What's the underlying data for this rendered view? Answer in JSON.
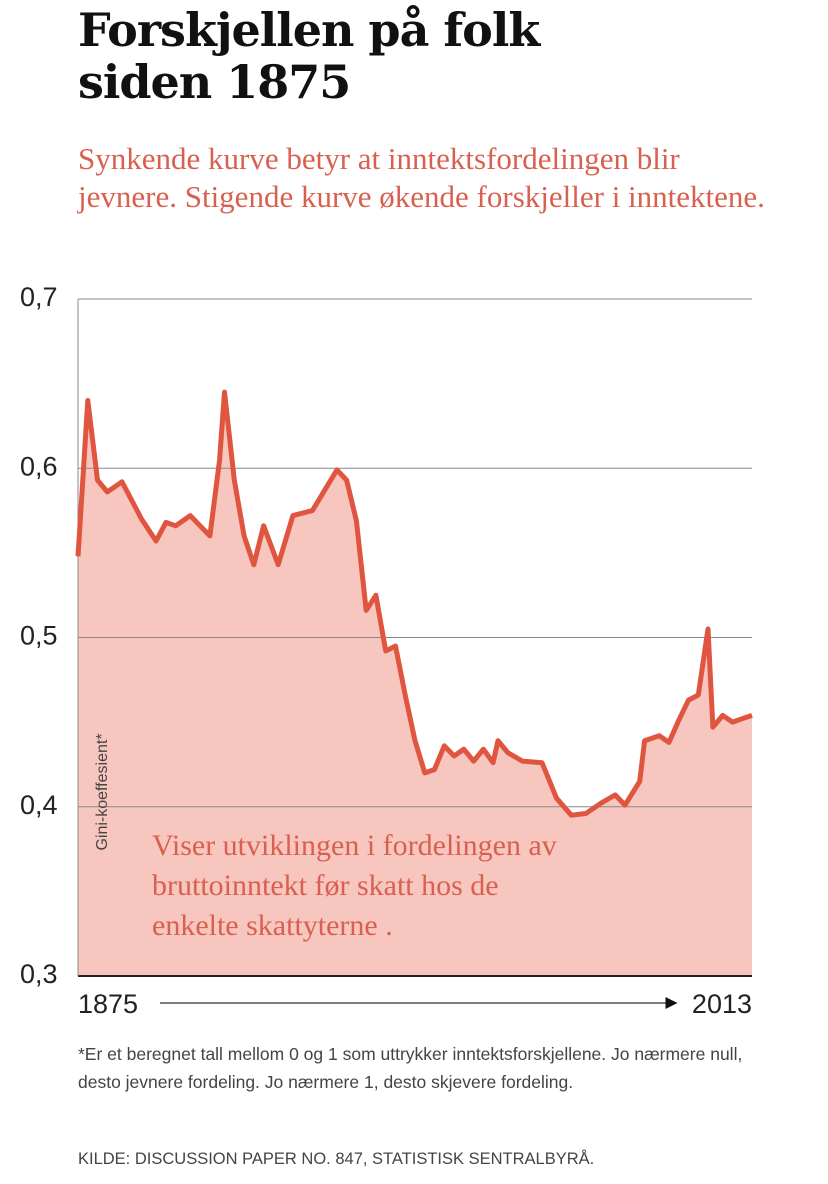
{
  "chart_data": {
    "type": "line",
    "title": "Forskjellen på folk siden 1875",
    "subtitle": "Synkende kurve betyr at inntektsfordelingen blir jevnere. Stigende kurve økende forskjeller i inntektene.",
    "y_label": "Gini-koeffesient*",
    "annotation": "Viser utviklingen i fordelingen av bruttoinntekt før skatt hos de enkelte skattyterne .",
    "footnote": "*Er et beregnet tall mellom 0 og 1 som uttrykker inntektsforskjellene. Jo nærmere null, desto jevnere fordeling. Jo nærmere 1, desto skjevere fordeling.",
    "source": "KILDE: DISCUSSION PAPER NO. 847, STATISTISK SENTRALBYRÅ.",
    "color": "#e0553f",
    "fill": "#f6c6bf",
    "grid": true,
    "xlim": [
      1875,
      2013
    ],
    "xticks": [
      1875,
      2013
    ],
    "ylim": [
      0.3,
      0.7
    ],
    "yticks": [
      {
        "value": 0.3,
        "label": "0,3"
      },
      {
        "value": 0.4,
        "label": "0,4"
      },
      {
        "value": 0.5,
        "label": "0,5"
      },
      {
        "value": 0.6,
        "label": "0,6"
      },
      {
        "value": 0.7,
        "label": "0,7"
      }
    ],
    "x": [
      1875,
      1877,
      1879,
      1881,
      1884,
      1888,
      1891,
      1893,
      1895,
      1898,
      1900,
      1902,
      1904,
      1905,
      1907,
      1909,
      1911,
      1913,
      1916,
      1919,
      1923,
      1928,
      1930,
      1932,
      1934,
      1936,
      1938,
      1940,
      1942,
      1944,
      1946,
      1948,
      1950,
      1952,
      1954,
      1956,
      1958,
      1960,
      1961,
      1963,
      1966,
      1970,
      1973,
      1976,
      1979,
      1982,
      1985,
      1987,
      1990,
      1991,
      1994,
      1996,
      1998,
      2000,
      2002,
      2004,
      2005,
      2007,
      2009,
      2011,
      2013
    ],
    "values": [
      0.548,
      0.64,
      0.593,
      0.586,
      0.592,
      0.57,
      0.557,
      0.568,
      0.566,
      0.572,
      0.566,
      0.56,
      0.605,
      0.645,
      0.593,
      0.56,
      0.543,
      0.566,
      0.543,
      0.572,
      0.575,
      0.599,
      0.593,
      0.569,
      0.516,
      0.525,
      0.492,
      0.495,
      0.466,
      0.439,
      0.42,
      0.422,
      0.436,
      0.43,
      0.434,
      0.427,
      0.434,
      0.426,
      0.439,
      0.432,
      0.427,
      0.426,
      0.405,
      0.395,
      0.396,
      0.402,
      0.407,
      0.401,
      0.415,
      0.439,
      0.442,
      0.438,
      0.451,
      0.463,
      0.466,
      0.505,
      0.447,
      0.454,
      0.45,
      0.452,
      0.454
    ]
  }
}
